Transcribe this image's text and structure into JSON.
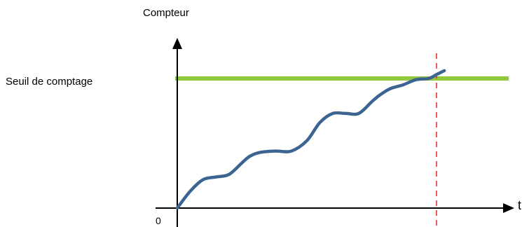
{
  "labels": {
    "y_axis": "Compteur",
    "threshold": "Seuil de comptage",
    "origin": "0",
    "x_axis": "t"
  },
  "colors": {
    "axis": "#000000",
    "threshold_line": "#92c83e",
    "curve": "#3c6491",
    "crossing_marker": "#e8242c"
  },
  "chart_data": {
    "type": "line",
    "title": "",
    "xlabel": "t",
    "ylabel": "Compteur",
    "threshold": {
      "label": "Seuil de comptage",
      "value": 100
    },
    "series": [
      {
        "x": [
          0,
          5,
          10,
          15,
          20,
          25,
          28,
          32,
          38,
          44,
          50,
          55,
          60,
          65,
          70,
          75,
          78,
          82,
          87,
          92,
          97,
          100,
          103
        ],
        "y": [
          0,
          13,
          22,
          24,
          26,
          35,
          40,
          43,
          44,
          44,
          52,
          66,
          73,
          73,
          73,
          82,
          87,
          92,
          95,
          99,
          100,
          103,
          106
        ]
      }
    ],
    "threshold_crossing_x": 100
  }
}
